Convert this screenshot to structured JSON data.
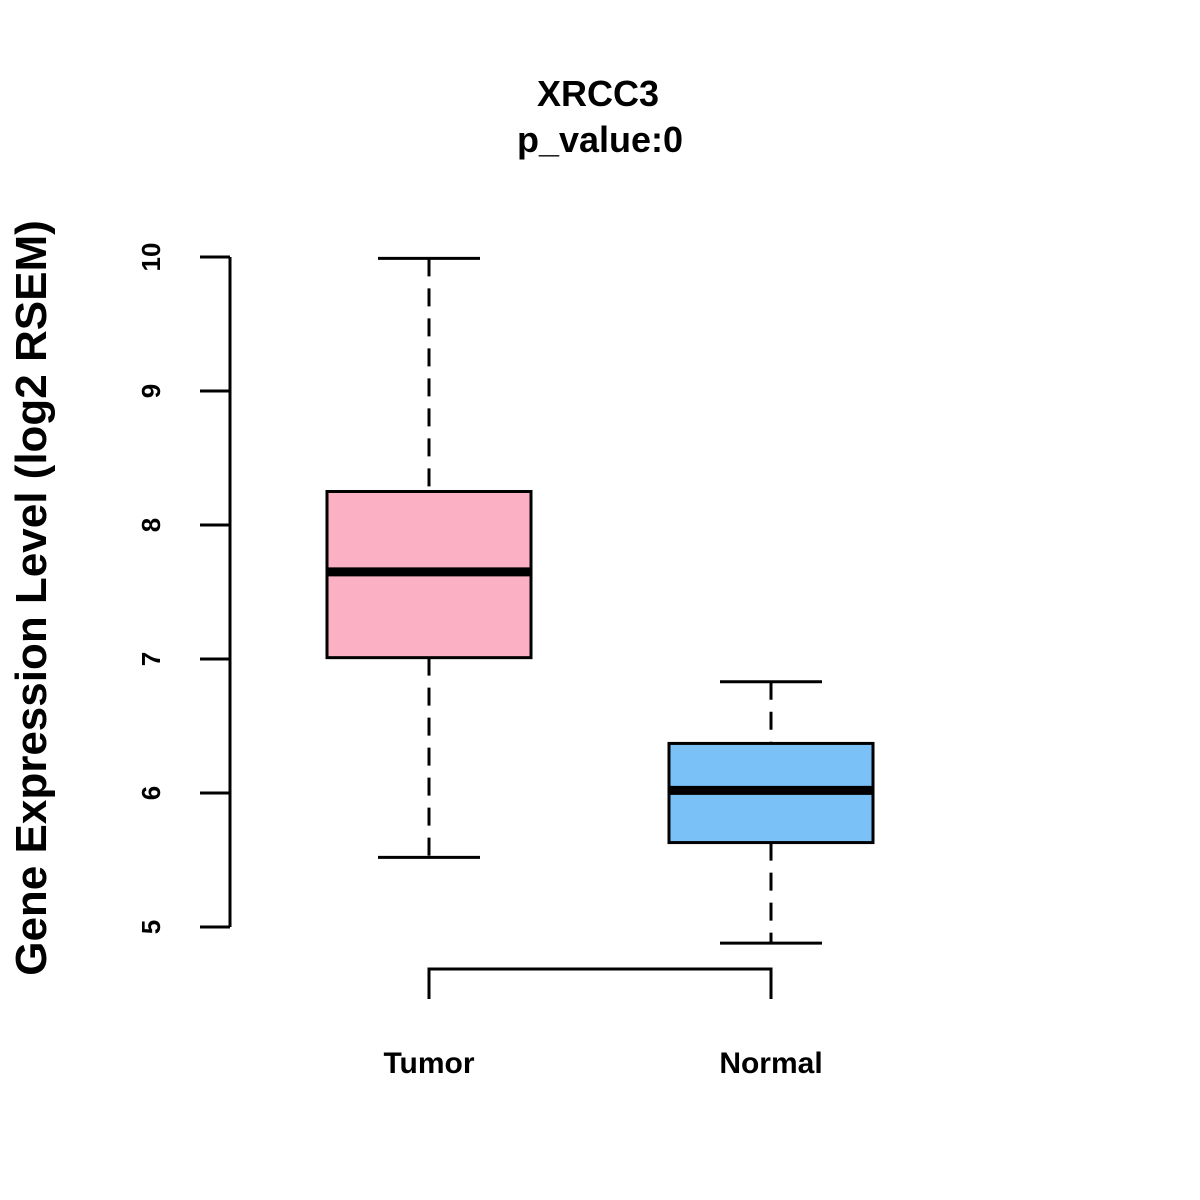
{
  "chart_data": {
    "type": "boxplot",
    "title": "XRCC3",
    "subtitle": "p_value:0",
    "xlabel": "",
    "ylabel": "Gene Expression Level (log2 RSEM)",
    "ylim": [
      5,
      10
    ],
    "yticks": [
      5,
      6,
      7,
      8,
      9,
      10
    ],
    "categories": [
      "Tumor",
      "Normal"
    ],
    "boxes": [
      {
        "name": "Tumor",
        "min": 5.52,
        "q1": 7.01,
        "median": 7.65,
        "q3": 8.25,
        "max": 9.99,
        "color": "#FCB0C3"
      },
      {
        "name": "Normal",
        "min": 4.88,
        "q1": 5.63,
        "median": 6.02,
        "q3": 6.37,
        "max": 6.83,
        "color": "#7AC1F8"
      }
    ],
    "comparison_bracket": {
      "between": [
        "Tumor",
        "Normal"
      ]
    },
    "grid": false,
    "legend": "none"
  }
}
